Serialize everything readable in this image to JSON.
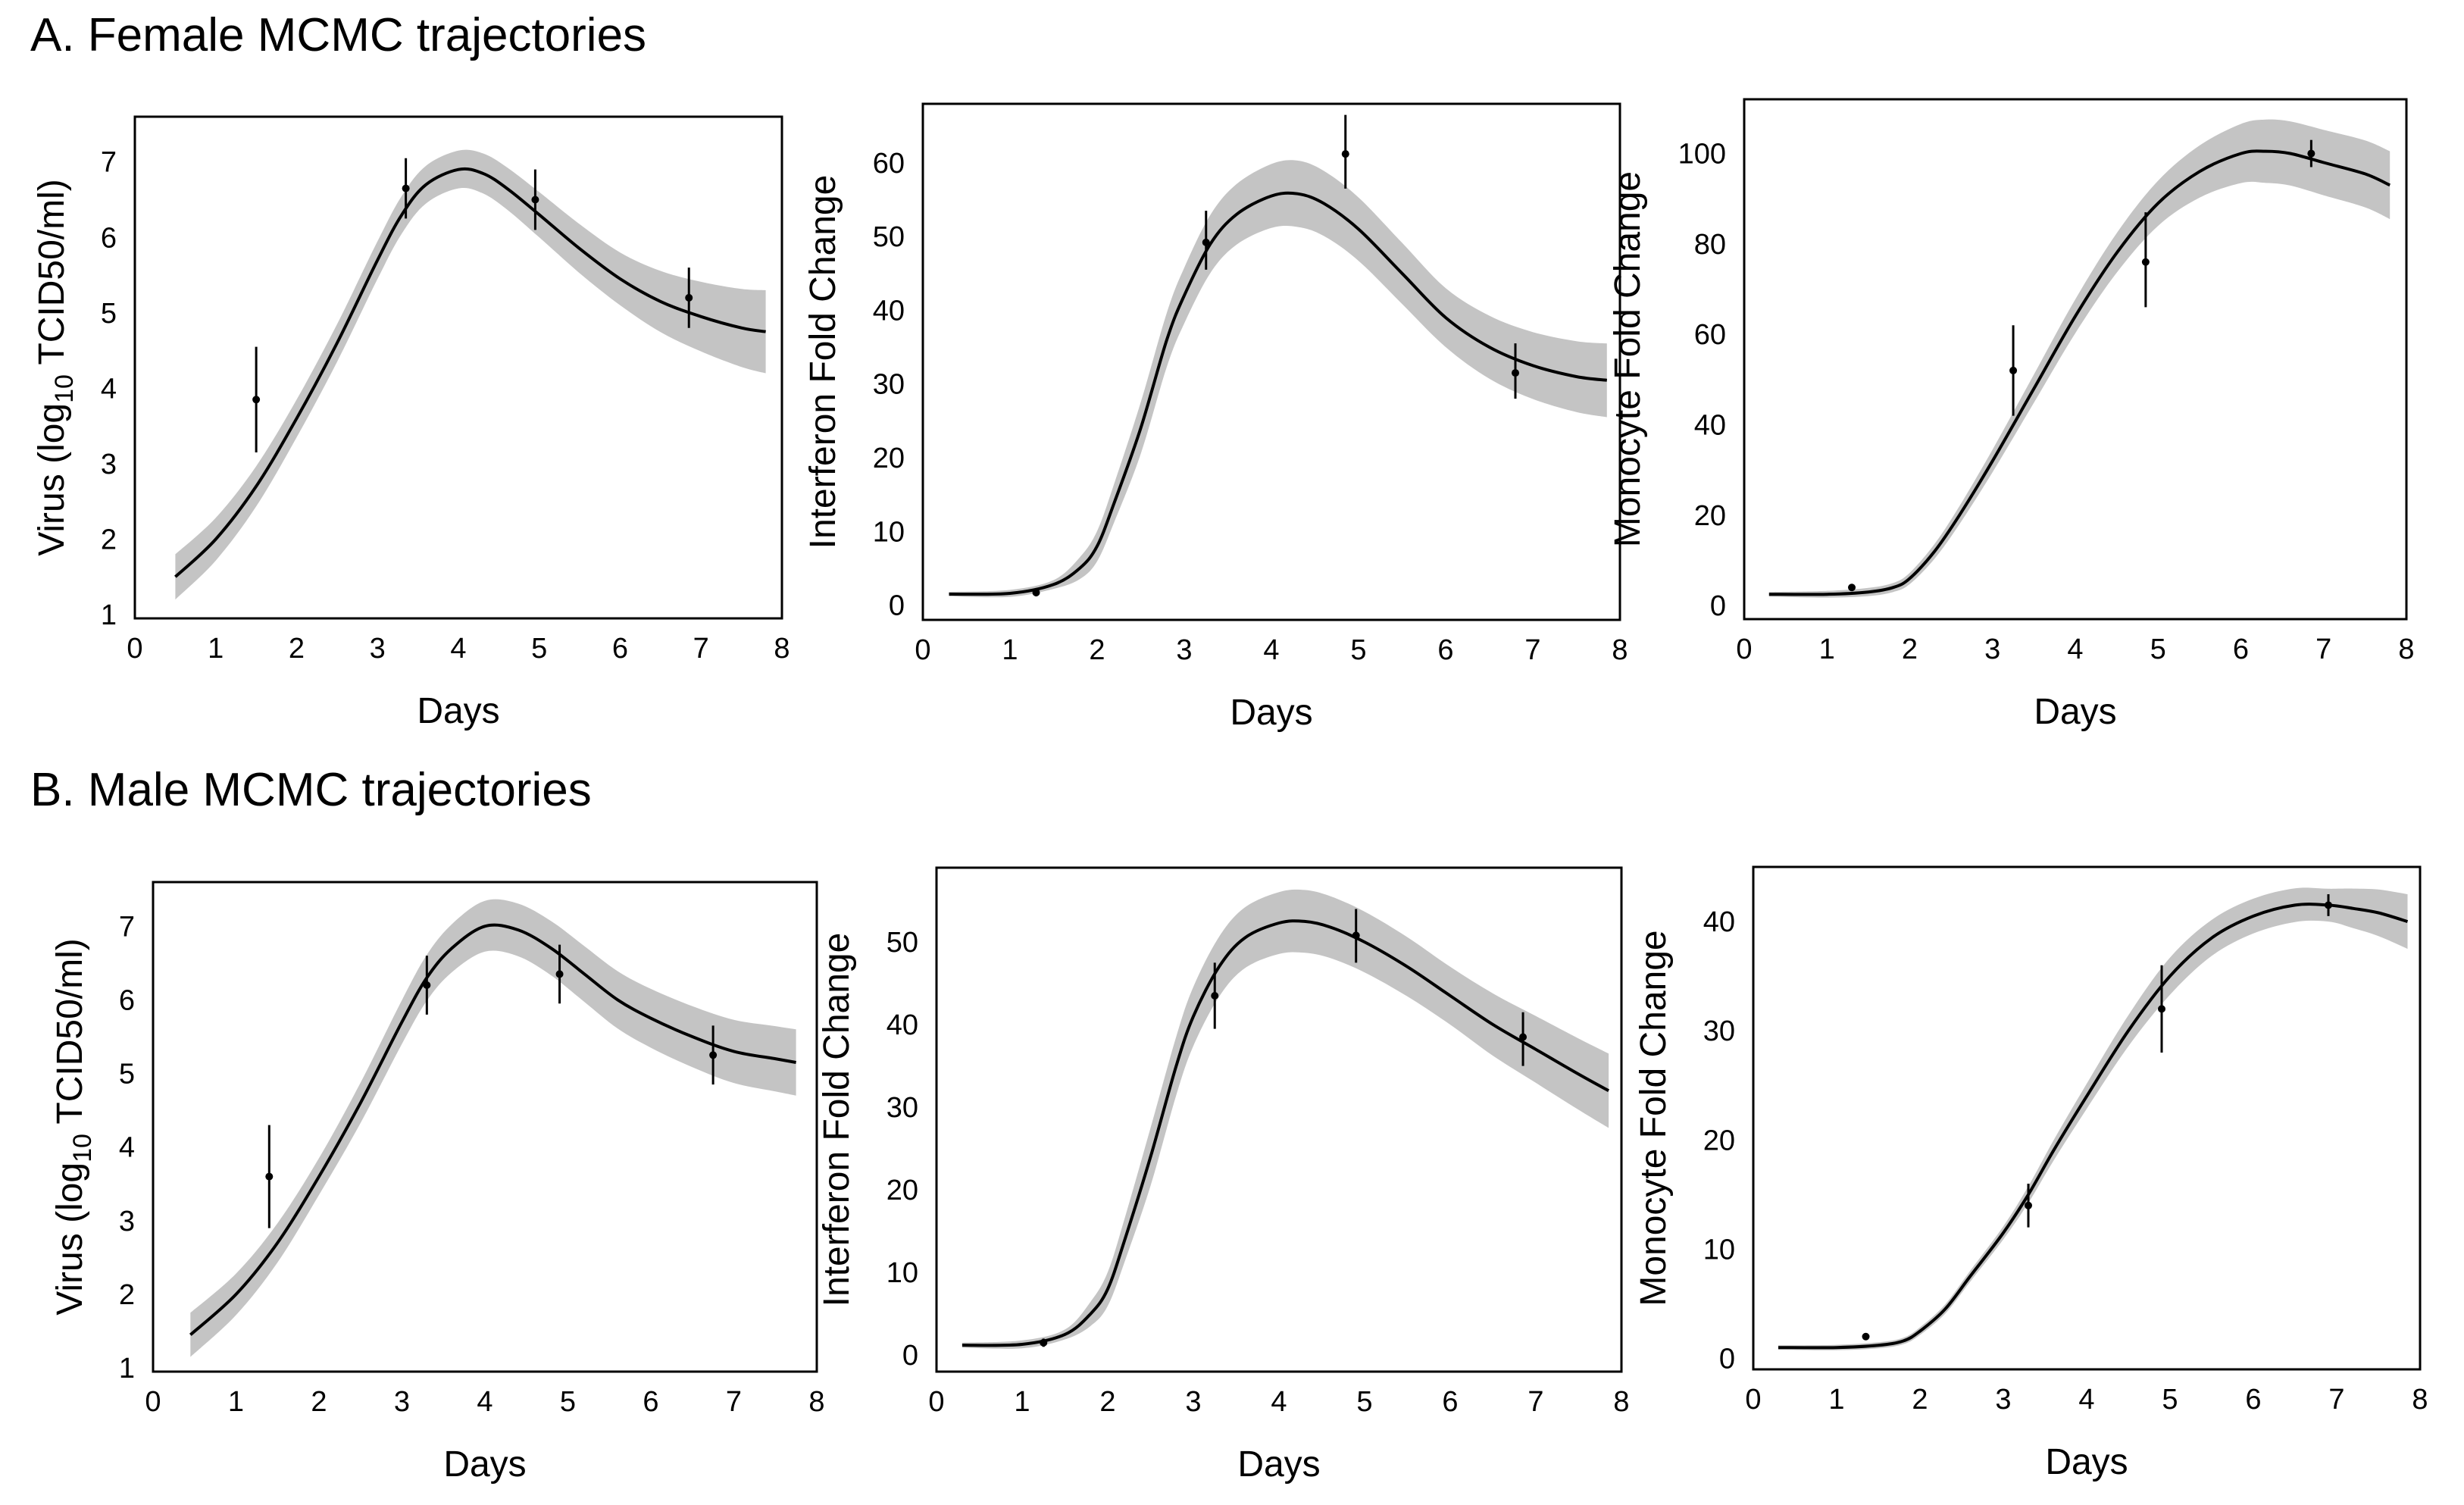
{
  "sections": [
    {
      "title": "A. Female MCMC trajectories"
    },
    {
      "title": "B. Male MCMC trajectories"
    }
  ],
  "chart_data": [
    {
      "type": "line",
      "section": "A. Female MCMC trajectories",
      "xlabel": "Days",
      "ylabel": "Virus (log10 TCID50/ml)",
      "ylabel_parts": {
        "pre": "Virus (log",
        "sub": "10",
        "post": " TCID50/ml)"
      },
      "xlim": [
        0,
        8
      ],
      "ylim": [
        0.95,
        7.6
      ],
      "xticks": [
        0,
        1,
        2,
        3,
        4,
        5,
        6,
        7,
        8
      ],
      "yticks": [
        1,
        2,
        3,
        4,
        5,
        6,
        7
      ],
      "fit_curve": {
        "x": [
          0.5,
          1,
          1.5,
          2,
          2.5,
          3,
          3.3,
          3.6,
          4,
          4.3,
          4.6,
          5,
          5.5,
          6,
          6.5,
          7,
          7.5,
          7.8
        ],
        "y": [
          1.5,
          2.0,
          2.7,
          3.6,
          4.6,
          5.7,
          6.3,
          6.7,
          6.9,
          6.85,
          6.65,
          6.3,
          5.85,
          5.45,
          5.15,
          4.95,
          4.8,
          4.75
        ]
      },
      "band_halfwidth": {
        "x": [
          0.5,
          2,
          4,
          6,
          7.8
        ],
        "w": [
          0.3,
          0.25,
          0.25,
          0.35,
          0.55
        ]
      },
      "observations": [
        {
          "x": 1.5,
          "y": 3.85,
          "lo": 3.15,
          "hi": 4.55
        },
        {
          "x": 3.35,
          "y": 6.65,
          "lo": 6.25,
          "hi": 7.05
        },
        {
          "x": 4.95,
          "y": 6.5,
          "lo": 6.1,
          "hi": 6.9
        },
        {
          "x": 6.85,
          "y": 5.2,
          "lo": 4.8,
          "hi": 5.6
        }
      ]
    },
    {
      "type": "line",
      "section": "A. Female MCMC trajectories",
      "xlabel": "Days",
      "ylabel": "Interferon Fold Change",
      "xlim": [
        0,
        8
      ],
      "ylim": [
        -2,
        68
      ],
      "xticks": [
        0,
        1,
        2,
        3,
        4,
        5,
        6,
        7,
        8
      ],
      "yticks": [
        0,
        10,
        20,
        30,
        40,
        50,
        60
      ],
      "fit_curve": {
        "x": [
          0.3,
          1,
          1.5,
          1.8,
          2,
          2.2,
          2.5,
          2.8,
          3,
          3.3,
          3.6,
          4,
          4.3,
          4.6,
          5,
          5.5,
          6,
          6.5,
          7,
          7.5,
          7.85
        ],
        "y": [
          1.5,
          1.6,
          2.8,
          5,
          8,
          14,
          24,
          36,
          42,
          49,
          53,
          55.5,
          55.8,
          54.5,
          51,
          45,
          39,
          35,
          32.5,
          31,
          30.5
        ]
      },
      "band_halfwidth": {
        "x": [
          0.3,
          1.5,
          2.5,
          4.3,
          6,
          7.85
        ],
        "w": [
          0.3,
          0.6,
          3.5,
          4.5,
          4,
          5
        ]
      },
      "observations": [
        {
          "x": 1.3,
          "y": 1.7,
          "lo": 1.2,
          "hi": 2.2
        },
        {
          "x": 3.25,
          "y": 49.2,
          "lo": 45.5,
          "hi": 53.5
        },
        {
          "x": 4.85,
          "y": 61.2,
          "lo": 56.5,
          "hi": 66.5
        },
        {
          "x": 6.8,
          "y": 31.5,
          "lo": 28.0,
          "hi": 35.5
        }
      ]
    },
    {
      "type": "line",
      "section": "A. Female MCMC trajectories",
      "xlabel": "Days",
      "ylabel": "Monocyte Fold Change",
      "xlim": [
        0,
        8
      ],
      "ylim": [
        -3,
        112
      ],
      "xticks": [
        0,
        1,
        2,
        3,
        4,
        5,
        6,
        7,
        8
      ],
      "yticks": [
        0,
        20,
        40,
        60,
        80,
        100
      ],
      "fit_curve": {
        "x": [
          0.3,
          1,
          1.5,
          1.8,
          2,
          2.3,
          2.6,
          3,
          3.5,
          4,
          4.5,
          5,
          5.5,
          6,
          6.3,
          6.6,
          7,
          7.5,
          7.8
        ],
        "y": [
          2.5,
          2.5,
          3,
          4,
          6,
          12,
          20,
          32,
          48,
          64,
          78,
          89,
          96,
          100,
          100.5,
          100,
          98,
          95.5,
          93
        ]
      },
      "band_halfwidth": {
        "x": [
          0.3,
          1.8,
          3,
          5,
          6.3,
          7.8
        ],
        "w": [
          0.5,
          1,
          2.5,
          5,
          7,
          7.5
        ]
      },
      "observations": [
        {
          "x": 1.3,
          "y": 4.0,
          "lo": 3.5,
          "hi": 4.5
        },
        {
          "x": 3.25,
          "y": 52.0,
          "lo": 42.0,
          "hi": 62.0
        },
        {
          "x": 4.85,
          "y": 76.0,
          "lo": 66.0,
          "hi": 87.0
        },
        {
          "x": 6.85,
          "y": 100.0,
          "lo": 97.0,
          "hi": 103.0
        }
      ]
    },
    {
      "type": "line",
      "section": "B. Male MCMC trajectories",
      "xlabel": "Days",
      "ylabel": "Virus (log10 TCID50/ml)",
      "ylabel_parts": {
        "pre": "Virus (log",
        "sub": "10",
        "post": " TCID50/ml)"
      },
      "xlim": [
        0,
        8
      ],
      "ylim": [
        0.95,
        7.6
      ],
      "xticks": [
        0,
        1,
        2,
        3,
        4,
        5,
        6,
        7,
        8
      ],
      "yticks": [
        1,
        2,
        3,
        4,
        5,
        6,
        7
      ],
      "fit_curve": {
        "x": [
          0.45,
          1,
          1.5,
          2,
          2.5,
          3,
          3.3,
          3.6,
          4,
          4.4,
          4.8,
          5.2,
          5.6,
          6,
          6.5,
          7,
          7.5,
          7.75
        ],
        "y": [
          1.45,
          2.0,
          2.7,
          3.6,
          4.6,
          5.7,
          6.3,
          6.7,
          7.0,
          6.95,
          6.7,
          6.35,
          6.0,
          5.75,
          5.5,
          5.3,
          5.2,
          5.15
        ]
      },
      "band_halfwidth": {
        "x": [
          0.45,
          2,
          4.1,
          6,
          7.75
        ],
        "w": [
          0.3,
          0.25,
          0.35,
          0.4,
          0.45
        ]
      },
      "observations": [
        {
          "x": 1.4,
          "y": 3.6,
          "lo": 2.9,
          "hi": 4.3
        },
        {
          "x": 3.3,
          "y": 6.2,
          "lo": 5.8,
          "hi": 6.6
        },
        {
          "x": 4.9,
          "y": 6.35,
          "lo": 5.95,
          "hi": 6.75
        },
        {
          "x": 6.75,
          "y": 5.25,
          "lo": 4.85,
          "hi": 5.65
        }
      ]
    },
    {
      "type": "line",
      "section": "B. Male MCMC trajectories",
      "xlabel": "Days",
      "ylabel": "Interferon Fold Change",
      "xlim": [
        0,
        8
      ],
      "ylim": [
        -2,
        59
      ],
      "xticks": [
        0,
        1,
        2,
        3,
        4,
        5,
        6,
        7,
        8
      ],
      "yticks": [
        0,
        10,
        20,
        30,
        40,
        50
      ],
      "fit_curve": {
        "x": [
          0.3,
          1,
          1.5,
          1.8,
          2,
          2.2,
          2.5,
          2.8,
          3,
          3.3,
          3.6,
          4,
          4.3,
          4.6,
          5,
          5.5,
          6,
          6.5,
          7,
          7.5,
          7.85
        ],
        "y": [
          1.2,
          1.3,
          2.5,
          5,
          8,
          14,
          24,
          35,
          41,
          47,
          50.5,
          52.3,
          52.5,
          51.8,
          50,
          47,
          43.5,
          40,
          37,
          34,
          32
        ]
      },
      "band_halfwidth": {
        "x": [
          0.3,
          1.5,
          2.5,
          4.3,
          6,
          7.85
        ],
        "w": [
          0.3,
          0.6,
          3.5,
          3.8,
          3.5,
          4.5
        ]
      },
      "observations": [
        {
          "x": 1.25,
          "y": 1.5,
          "lo": 1.0,
          "hi": 2.0
        },
        {
          "x": 3.25,
          "y": 43.5,
          "lo": 39.5,
          "hi": 47.5
        },
        {
          "x": 4.9,
          "y": 50.8,
          "lo": 47.5,
          "hi": 54.0
        },
        {
          "x": 6.85,
          "y": 38.5,
          "lo": 35.0,
          "hi": 41.5
        }
      ]
    },
    {
      "type": "line",
      "section": "B. Male MCMC trajectories",
      "xlabel": "Days",
      "ylabel": "Monocyte Fold Change",
      "xlim": [
        0,
        8
      ],
      "ylim": [
        -1,
        45
      ],
      "xticks": [
        0,
        1,
        2,
        3,
        4,
        5,
        6,
        7,
        8
      ],
      "yticks": [
        0,
        10,
        20,
        30,
        40
      ],
      "fit_curve": {
        "x": [
          0.3,
          1,
          1.5,
          1.8,
          2,
          2.3,
          2.6,
          3,
          3.3,
          3.6,
          4,
          4.5,
          5,
          5.5,
          6,
          6.5,
          6.9,
          7.2,
          7.5,
          7.85
        ],
        "y": [
          1.0,
          1.0,
          1.2,
          1.6,
          2.5,
          4.5,
          7.5,
          11.5,
          15,
          19,
          24,
          30,
          35,
          38.5,
          40.5,
          41.5,
          41.5,
          41.2,
          40.8,
          40
        ]
      },
      "band_halfwidth": {
        "x": [
          0.3,
          1.8,
          3,
          5,
          6.9,
          7.85
        ],
        "w": [
          0.2,
          0.3,
          0.6,
          1.7,
          1.5,
          2.5
        ]
      },
      "observations": [
        {
          "x": 1.35,
          "y": 2.0,
          "lo": 1.7,
          "hi": 2.3
        },
        {
          "x": 3.3,
          "y": 14.0,
          "lo": 12.0,
          "hi": 16.0
        },
        {
          "x": 4.9,
          "y": 32.0,
          "lo": 28.0,
          "hi": 36.0
        },
        {
          "x": 6.9,
          "y": 41.5,
          "lo": 40.5,
          "hi": 42.5
        }
      ]
    }
  ]
}
